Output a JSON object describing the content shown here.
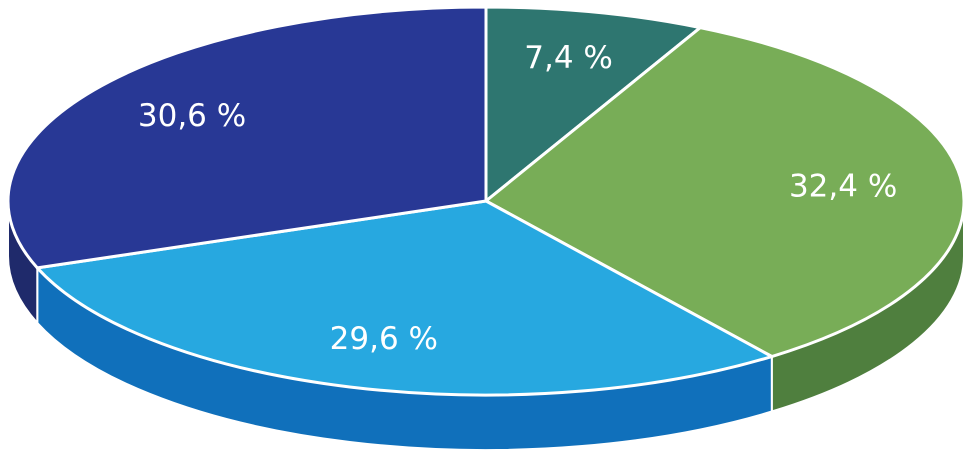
{
  "chart_data": {
    "type": "pie3d",
    "categories": [
      null,
      null,
      null,
      null
    ],
    "values": [
      7.4,
      32.4,
      29.6,
      30.6
    ],
    "value_labels": [
      "7,4 %",
      "32,4 %",
      "29,6 %",
      "30,6 %"
    ],
    "colors": [
      "#2e7670",
      "#78ad57",
      "#27a8e0",
      "#283895"
    ],
    "side_colors": [
      "#1f524e",
      "#4f7f3e",
      "#1070bb",
      "#1f2a6b"
    ]
  }
}
